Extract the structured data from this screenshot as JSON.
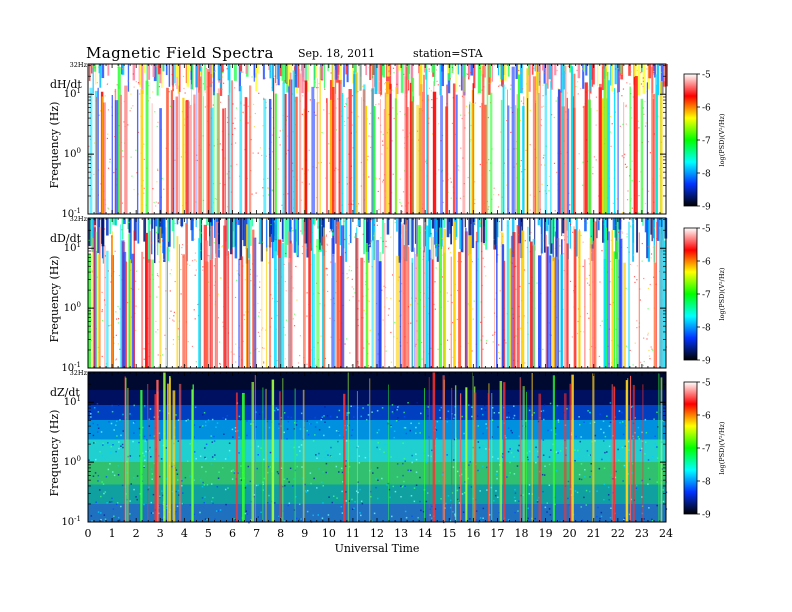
{
  "header": {
    "title": "Magnetic  Field  Spectra",
    "date": "Sep. 18, 2011",
    "station": "station=STA"
  },
  "colors": {
    "colormap": [
      "#000000",
      "#0033ff",
      "#00ffff",
      "#00ff00",
      "#ffff00",
      "#ff0000",
      "#ffffff"
    ]
  },
  "chart_data": [
    {
      "type": "heatmap",
      "component": "dH/dt",
      "panel_label": "dH/dt",
      "ylabel": "Frequency (Hz)",
      "yscale": "log",
      "ylim_hz": [
        0.1,
        32
      ],
      "yticks": [
        {
          "value": 0.1,
          "label": "10",
          "exp": "-1"
        },
        {
          "value": 1,
          "label": "10",
          "exp": "0"
        },
        {
          "value": 10,
          "label": "10",
          "exp": "1"
        }
      ],
      "top_label": "32Hz",
      "colorbar": {
        "label": "log(PSD)(V²/Hz)",
        "min": -9,
        "max": -5,
        "ticks": [
          "-5",
          "-6",
          "-7",
          "-8",
          "-9"
        ]
      },
      "background": "mostly white/red (high power) with dense vertical broadband streaks; noisy colored band near 32 Hz"
    },
    {
      "type": "heatmap",
      "component": "dD/dt",
      "panel_label": "dD/dt",
      "ylabel": "Frequency (Hz)",
      "yscale": "log",
      "ylim_hz": [
        0.1,
        32
      ],
      "yticks": [
        {
          "value": 0.1,
          "label": "10",
          "exp": "-1"
        },
        {
          "value": 1,
          "label": "10",
          "exp": "0"
        },
        {
          "value": 10,
          "label": "10",
          "exp": "1"
        }
      ],
      "top_label": "32Hz",
      "colorbar": {
        "label": "log(PSD)(V²/Hz)",
        "min": -9,
        "max": -5,
        "ticks": [
          "-5",
          "-6",
          "-7",
          "-8",
          "-9"
        ]
      },
      "background": "white/red with dark blue band near 32 Hz and many vertical streaks"
    },
    {
      "type": "heatmap",
      "component": "dZ/dt",
      "panel_label": "dZ/dt",
      "ylabel": "Frequency (Hz)",
      "yscale": "log",
      "ylim_hz": [
        0.1,
        32
      ],
      "yticks": [
        {
          "value": 0.1,
          "label": "10",
          "exp": "-1"
        },
        {
          "value": 1,
          "label": "10",
          "exp": "0"
        },
        {
          "value": 10,
          "label": "10",
          "exp": "1"
        }
      ],
      "top_label": "32Hz",
      "colorbar": {
        "label": "log(PSD)(V²/Hz)",
        "min": -9,
        "max": -5,
        "ticks": [
          "-5",
          "-6",
          "-7",
          "-8",
          "-9"
        ]
      },
      "background": "dark navy at high frequency, cyan/green/blue low-frequency background, sparse red/yellow vertical streaks"
    }
  ],
  "x_axis": {
    "label": "Universal Time",
    "range_hours": [
      0,
      24
    ],
    "ticks": [
      "0",
      "1",
      "2",
      "3",
      "4",
      "5",
      "6",
      "7",
      "8",
      "9",
      "10",
      "11",
      "12",
      "13",
      "14",
      "15",
      "16",
      "17",
      "18",
      "19",
      "20",
      "21",
      "22",
      "23",
      "24"
    ]
  }
}
